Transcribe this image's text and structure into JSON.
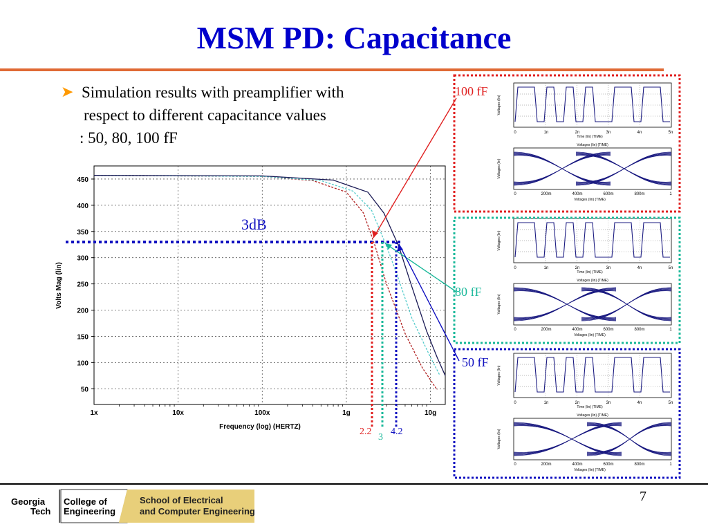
{
  "slide": {
    "title": "MSM PD: Capacitance",
    "bullet_lines": [
      "Simulation results with preamplifier with",
      "respect to different capacitance values",
      ": 50, 80, 100 fF"
    ],
    "page_number": "7"
  },
  "annotations": {
    "db_label": "3dB",
    "cap_100": "100 fF",
    "cap_80": "80 fF",
    "cap_50": "50 fF",
    "freq_22": "2.2",
    "freq_3": "3",
    "freq_42": "4.2"
  },
  "footer": {
    "georgia": "Georgia",
    "tech": "Tech",
    "college_of": "College of",
    "engineering": "Engineering",
    "school_line1": "School of Electrical",
    "school_line2": "and Computer Engineering"
  },
  "colors": {
    "title": "#0000cc",
    "rule": "#e06a35",
    "red": "#e02020",
    "teal": "#1ab89a",
    "blue": "#1010c0",
    "bullet": "#ff9900"
  },
  "chart_data": {
    "type": "line",
    "xlabel": "Frequency (log) (HERTZ)",
    "ylabel": "Volts Mag (lin)",
    "x_scale": "log",
    "x_ticks": [
      {
        "value": 1,
        "label": "1x"
      },
      {
        "value": 10,
        "label": "10x"
      },
      {
        "value": 100,
        "label": "100x"
      },
      {
        "value": 1000,
        "label": "1g"
      },
      {
        "value": 10000,
        "label": "10g"
      }
    ],
    "y_ticks": [
      50,
      100,
      150,
      200,
      250,
      300,
      350,
      400,
      450
    ],
    "xlim": [
      1,
      15000
    ],
    "ylim": [
      20,
      475
    ],
    "grid": true,
    "series": [
      {
        "color": "#b02020",
        "values": [
          [
            1,
            457
          ],
          [
            100,
            455
          ],
          [
            400,
            447
          ],
          [
            1000,
            425
          ],
          [
            1600,
            385
          ],
          [
            2200,
            322
          ],
          [
            3000,
            250
          ],
          [
            5000,
            155
          ],
          [
            8000,
            90
          ],
          [
            12000,
            48
          ]
        ]
      },
      {
        "color": "#55cccc",
        "values": [
          [
            1,
            457
          ],
          [
            100,
            455
          ],
          [
            500,
            447
          ],
          [
            1200,
            427
          ],
          [
            2000,
            390
          ],
          [
            3000,
            322
          ],
          [
            4000,
            268
          ],
          [
            6000,
            185
          ],
          [
            10000,
            110
          ],
          [
            13000,
            75
          ]
        ]
      },
      {
        "color": "#1a1a55",
        "values": [
          [
            1,
            457
          ],
          [
            100,
            456
          ],
          [
            700,
            448
          ],
          [
            1800,
            425
          ],
          [
            2800,
            385
          ],
          [
            4200,
            322
          ],
          [
            6000,
            245
          ],
          [
            9000,
            160
          ],
          [
            12000,
            110
          ],
          [
            15000,
            75
          ]
        ]
      }
    ],
    "threshold_y": 322,
    "threshold_x": [
      2200,
      3000,
      4200
    ]
  },
  "thumbnails": {
    "eye_title": "Voltages (lin) (TIME)",
    "wave_title": "Time (lin) (TIME)",
    "ylab": "Voltages (lin)",
    "wave_ticks": [
      "0",
      "1n",
      "2n",
      "3n",
      "4n",
      "5n"
    ],
    "eye_ticks": [
      "0",
      "200m",
      "400m",
      "600m",
      "800m",
      "1"
    ]
  }
}
